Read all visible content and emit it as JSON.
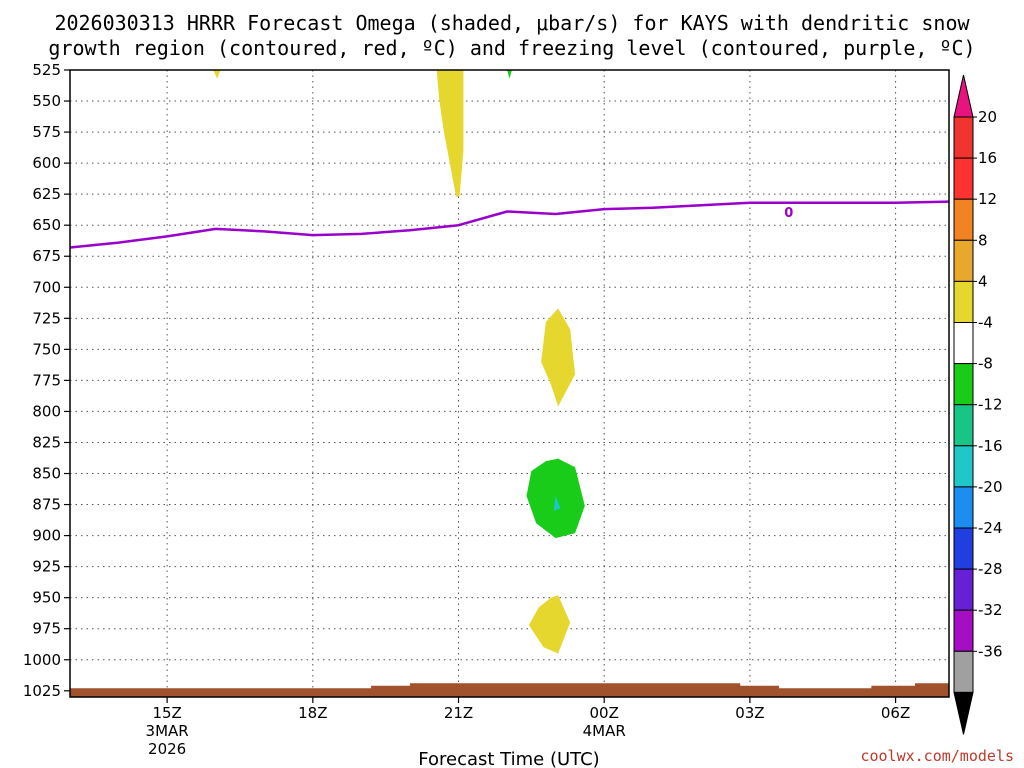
{
  "chart_data": {
    "type": "heatmap",
    "title_lines": [
      "2026030313 HRRR Forecast Omega (shaded, μbar/s) for KAYS with dendritic snow",
      "growth region (contoured, red, ºC) and freezing level (contoured, purple, ºC)"
    ],
    "xlabel": "Forecast Time (UTC)",
    "x_range_hours": [
      13,
      31.1
    ],
    "x_ticks": [
      {
        "hour": 15,
        "label": "15Z",
        "sub": [
          "3MAR",
          "2026"
        ]
      },
      {
        "hour": 18,
        "label": "18Z",
        "sub": []
      },
      {
        "hour": 21,
        "label": "21Z",
        "sub": []
      },
      {
        "hour": 24,
        "label": "00Z",
        "sub": [
          "4MAR"
        ]
      },
      {
        "hour": 27,
        "label": "03Z",
        "sub": []
      },
      {
        "hour": 30,
        "label": "06Z",
        "sub": []
      }
    ],
    "y_levels_hpa": [
      525,
      550,
      575,
      600,
      625,
      650,
      675,
      700,
      725,
      750,
      775,
      800,
      825,
      850,
      875,
      900,
      925,
      950,
      975,
      1000,
      1025
    ],
    "y_range_hpa": [
      525,
      1030
    ],
    "freezing_level": {
      "color": "#9900cc",
      "label": "0",
      "label_point": [
        27.8,
        645
      ],
      "points": [
        [
          13,
          668
        ],
        [
          14,
          664
        ],
        [
          15,
          659
        ],
        [
          16,
          653
        ],
        [
          17,
          655
        ],
        [
          18,
          658
        ],
        [
          19,
          657
        ],
        [
          20,
          654
        ],
        [
          21,
          650
        ],
        [
          22,
          639
        ],
        [
          23,
          641
        ],
        [
          24,
          637
        ],
        [
          25,
          636
        ],
        [
          26,
          634
        ],
        [
          27,
          632
        ],
        [
          27.8,
          632
        ],
        [
          29,
          632
        ],
        [
          30,
          632
        ],
        [
          31.1,
          631
        ]
      ]
    },
    "omega_regions": [
      {
        "name": "upper-lift-column",
        "category": "4 to 8",
        "color": "#e6d72e",
        "points": [
          [
            20.55,
            525
          ],
          [
            21.1,
            525
          ],
          [
            21.1,
            590
          ],
          [
            21.02,
            627
          ],
          [
            20.95,
            627
          ],
          [
            20.7,
            575
          ],
          [
            20.6,
            548
          ]
        ]
      },
      {
        "name": "small-top-left-yellow",
        "category": "4 to 8",
        "color": "#e6d72e",
        "points": [
          [
            15.95,
            525
          ],
          [
            16.1,
            525
          ],
          [
            16.03,
            532
          ]
        ]
      },
      {
        "name": "small-top-green",
        "category": "-8 to -4",
        "color": "#19cc19",
        "points": [
          [
            22.0,
            525
          ],
          [
            22.1,
            525
          ],
          [
            22.05,
            532
          ]
        ]
      },
      {
        "name": "mid-yellow-blob",
        "category": "4 to 8",
        "color": "#e6d72e",
        "points": [
          [
            23.05,
            717
          ],
          [
            23.3,
            734
          ],
          [
            23.4,
            770
          ],
          [
            23.05,
            796
          ],
          [
            22.9,
            778
          ],
          [
            22.7,
            760
          ],
          [
            22.8,
            728
          ]
        ]
      },
      {
        "name": "lower-green-blob",
        "category": "-8 to -4",
        "color": "#19cc19",
        "points": [
          [
            23.05,
            838
          ],
          [
            23.4,
            845
          ],
          [
            23.6,
            876
          ],
          [
            23.4,
            898
          ],
          [
            23.0,
            902
          ],
          [
            22.6,
            890
          ],
          [
            22.4,
            868
          ],
          [
            22.5,
            848
          ],
          [
            22.8,
            840
          ]
        ]
      },
      {
        "name": "lower-cyan-speck",
        "category": "-16 to -12",
        "color": "#19c8c8",
        "points": [
          [
            23.0,
            868
          ],
          [
            23.1,
            878
          ],
          [
            22.96,
            880
          ]
        ]
      },
      {
        "name": "bottom-yellow-blob",
        "category": "4 to 8",
        "color": "#e6d72e",
        "points": [
          [
            23.05,
            948
          ],
          [
            23.3,
            970
          ],
          [
            23.05,
            995
          ],
          [
            22.75,
            990
          ],
          [
            22.45,
            972
          ],
          [
            22.65,
            958
          ],
          [
            22.9,
            950
          ]
        ]
      }
    ],
    "terrain": {
      "color": "#a0522d",
      "base_hpa": 1030,
      "points": [
        [
          13,
          1023
        ],
        [
          19.2,
          1023
        ],
        [
          19.2,
          1021
        ],
        [
          20,
          1021
        ],
        [
          20,
          1019
        ],
        [
          26.8,
          1019
        ],
        [
          26.8,
          1021
        ],
        [
          27.6,
          1021
        ],
        [
          27.6,
          1023
        ],
        [
          29.5,
          1023
        ],
        [
          29.5,
          1021
        ],
        [
          30.4,
          1021
        ],
        [
          30.4,
          1019
        ],
        [
          31.1,
          1019
        ]
      ]
    },
    "colorbar": {
      "labels": [
        "20",
        "16",
        "12",
        "8",
        "4",
        "-4",
        "-8",
        "-12",
        "-16",
        "-20",
        "-24",
        "-28",
        "-32",
        "-36"
      ],
      "top_color": "#e8137e",
      "bottom_color": "#000000",
      "bins": [
        {
          "color": "#f03530"
        },
        {
          "color": "#ff3232"
        },
        {
          "color": "#f28322"
        },
        {
          "color": "#e8a82c"
        },
        {
          "color": "#e6d72e"
        },
        {
          "color": "#ffffff"
        },
        {
          "color": "#19cc19"
        },
        {
          "color": "#18c486"
        },
        {
          "color": "#1fc8c8"
        },
        {
          "color": "#1b8ef0"
        },
        {
          "color": "#1f3fe0"
        },
        {
          "color": "#6621d6"
        },
        {
          "color": "#a40fc4"
        },
        {
          "color": "#a0a0a0"
        }
      ]
    },
    "credit": "coolwx.com/models"
  }
}
